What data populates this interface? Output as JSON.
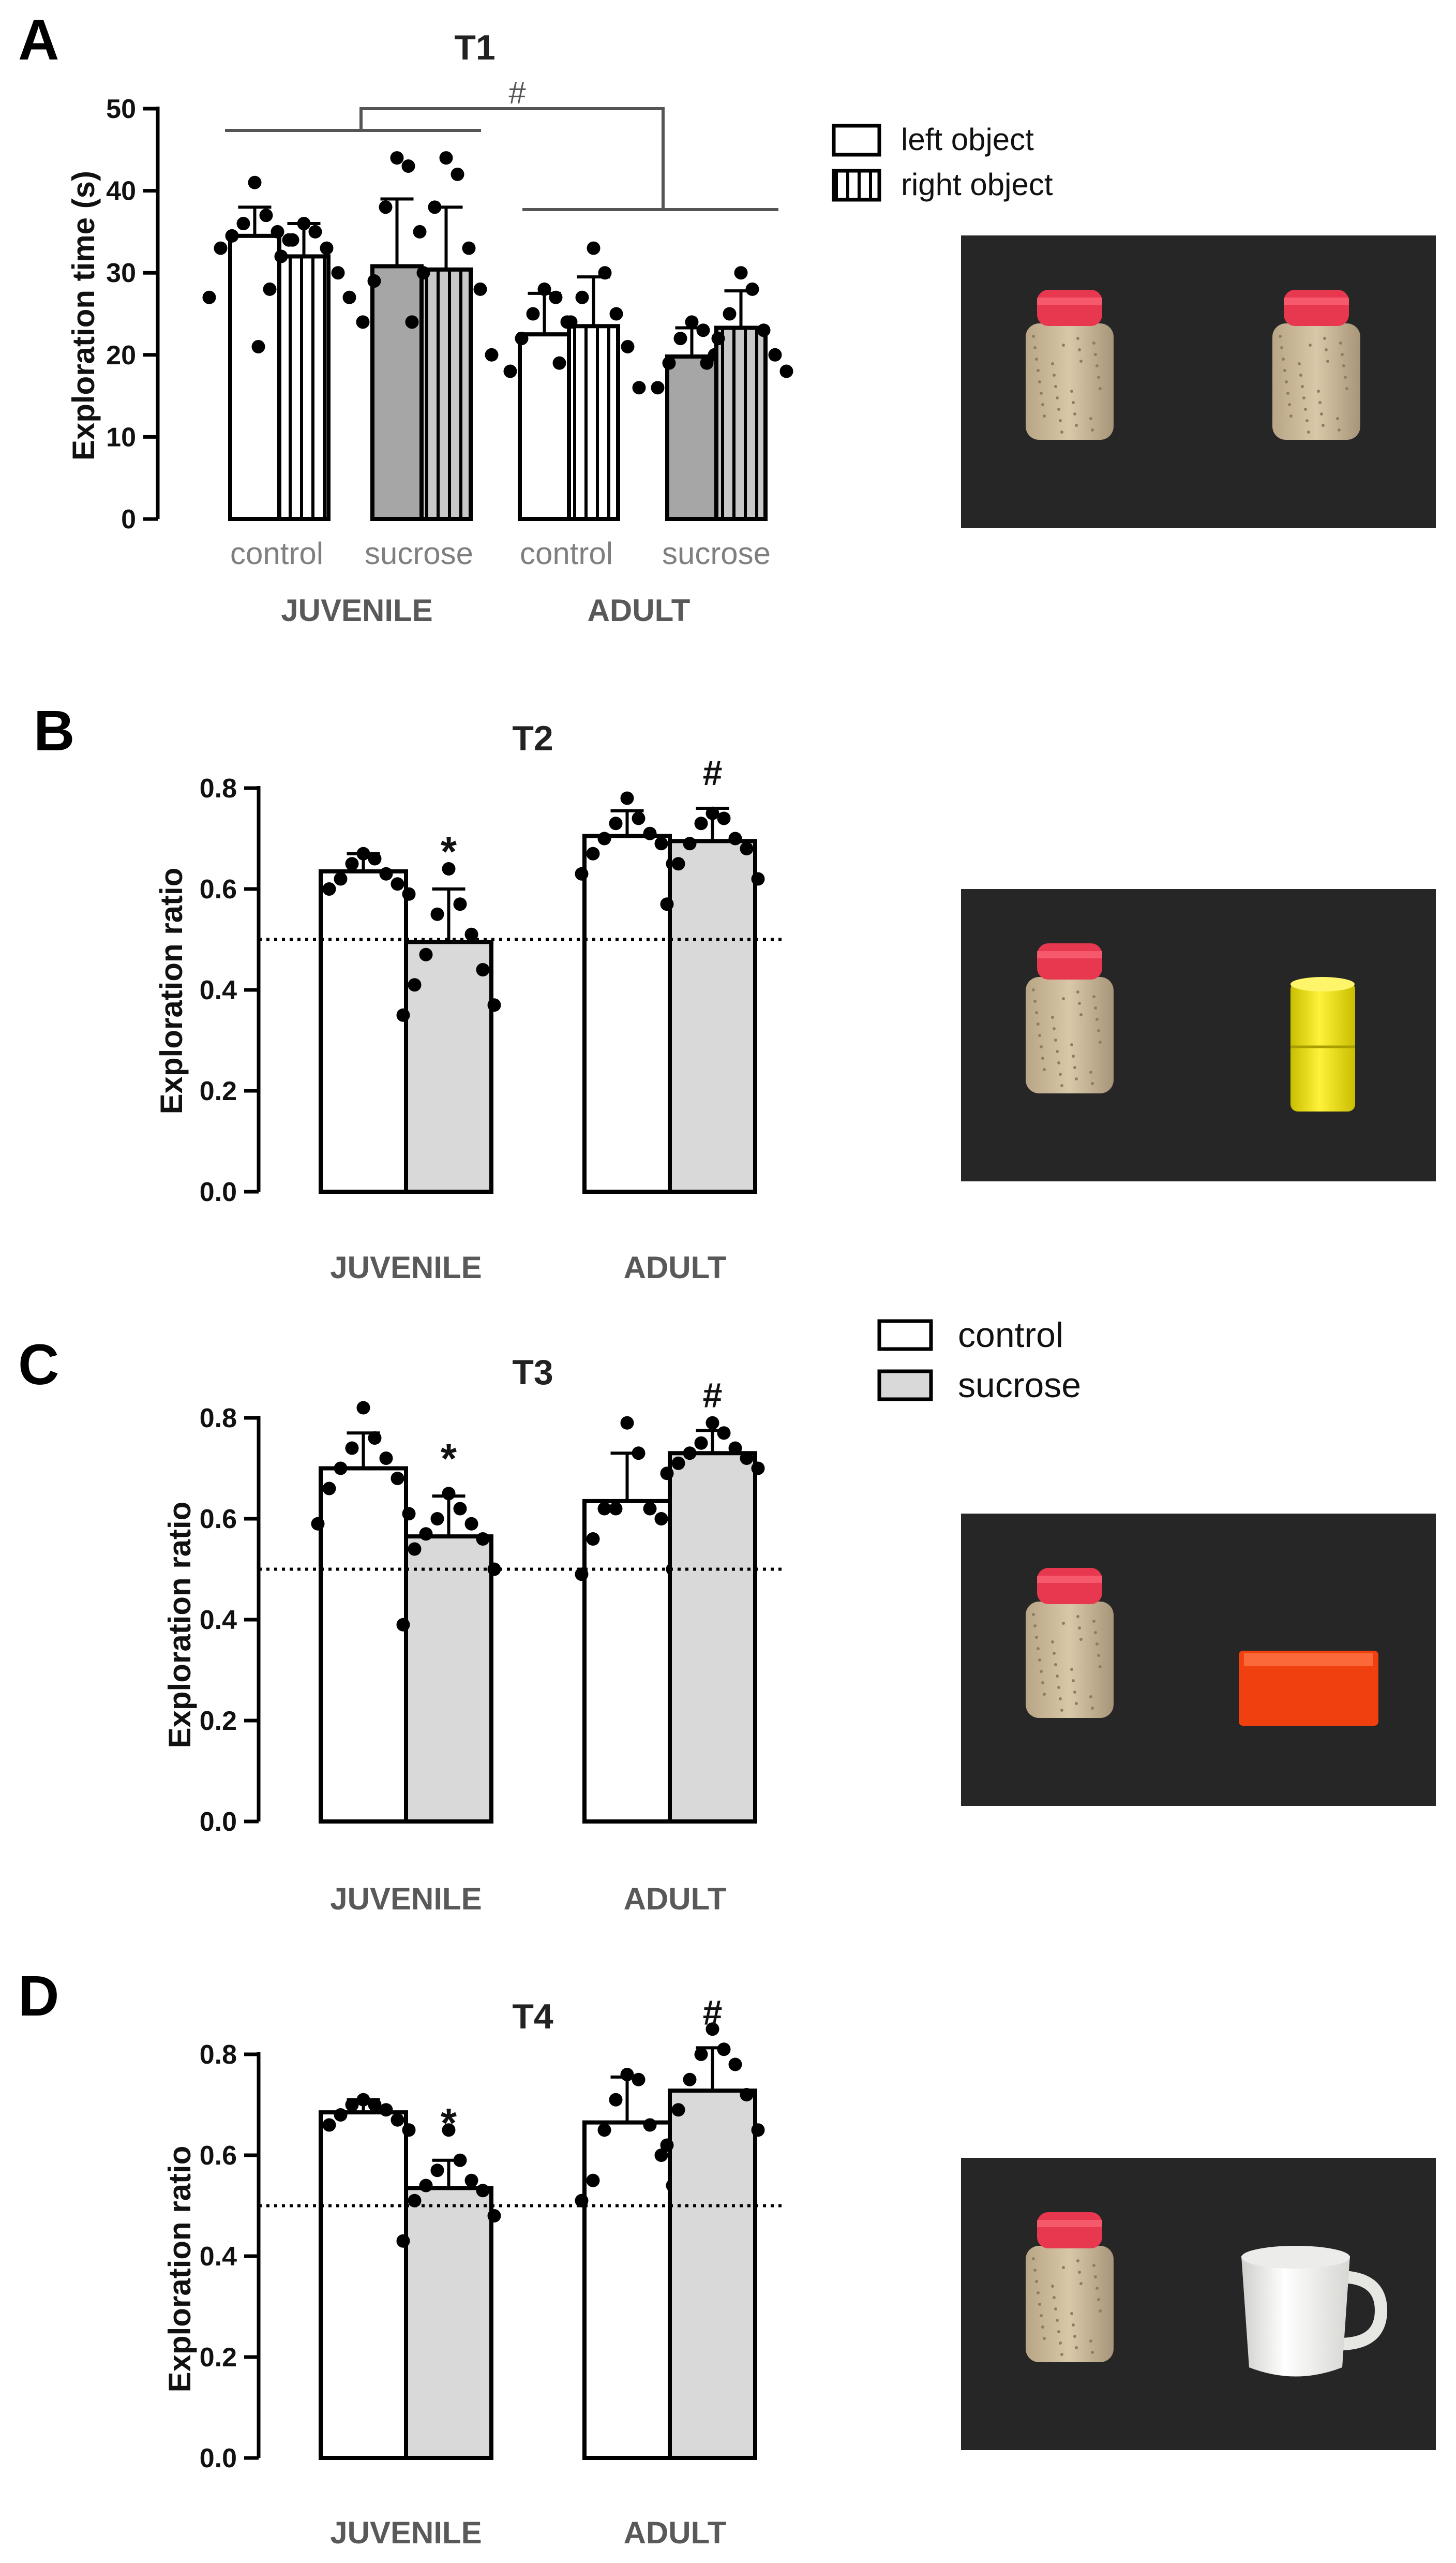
{
  "colors": {
    "control": "#ffffff",
    "sucrose_juvenile": "#a6a6a6",
    "sucrose_gray": "#d9d9d9",
    "photo_bg": "#262626",
    "jar_cap": "#e8384f",
    "jar_body": "#c8b697",
    "cylinder": "#f2e600",
    "brick": "#f0400f",
    "mug": "#f2f2f0"
  },
  "chart_data": [
    {
      "panel": "A",
      "type": "bar",
      "title": "T1",
      "ylabel": "Exploration time (s)",
      "ylim": [
        0,
        50
      ],
      "yticks": [
        "0",
        "10",
        "20",
        "30",
        "40",
        "50"
      ],
      "categories": [
        "control",
        "sucrose",
        "control",
        "sucrose"
      ],
      "group_labels": [
        "JUVENILE",
        "ADULT"
      ],
      "legend": [
        "left object",
        "right object"
      ],
      "series": [
        {
          "name": "left object",
          "values": [
            34.5,
            30.8,
            22.5,
            19.8
          ],
          "sd": [
            3.5,
            8.2,
            5.0,
            3.5
          ]
        },
        {
          "name": "right object",
          "values": [
            32.0,
            30.4,
            23.5,
            23.3
          ],
          "sd": [
            4.0,
            7.6,
            6.0,
            4.5
          ]
        }
      ],
      "points": [
        [
          [
            41,
            37,
            36,
            35,
            34.5,
            34,
            33,
            31,
            27
          ],
          [
            36,
            35,
            34,
            33,
            32,
            30,
            28,
            27,
            21
          ],
          [
            44,
            43,
            38,
            35,
            29,
            27,
            24,
            19
          ],
          [
            44,
            42,
            38,
            33,
            30,
            28,
            24,
            20
          ],
          [
            28,
            27,
            25,
            24,
            22,
            20,
            18,
            15
          ],
          [
            33,
            30,
            27,
            25,
            24,
            21,
            19,
            16
          ],
          [
            24,
            23,
            22,
            20,
            19,
            18,
            16,
            15
          ],
          [
            30,
            28,
            25,
            23,
            22,
            20,
            19,
            18
          ]
        ]
      ],
      "annotations": [
        "#"
      ]
    },
    {
      "panel": "B",
      "type": "bar",
      "title": "T2",
      "ylabel": "Exploration ratio",
      "ylim": [
        0,
        0.8
      ],
      "yticks": [
        "0.0",
        "0.2",
        "0.4",
        "0.6",
        "0.8"
      ],
      "categories": [
        "JUVENILE",
        "ADULT"
      ],
      "reference_line": 0.5,
      "series": [
        {
          "name": "control",
          "values": [
            0.635,
            0.705
          ],
          "sd": [
            0.035,
            0.05
          ]
        },
        {
          "name": "sucrose",
          "values": [
            0.495,
            0.695
          ],
          "sd": [
            0.105,
            0.065
          ]
        }
      ],
      "points": [
        [
          0.67,
          0.66,
          0.65,
          0.63,
          0.62,
          0.61,
          0.6,
          0.59
        ],
        [
          0.64,
          0.57,
          0.55,
          0.51,
          0.47,
          0.44,
          0.41,
          0.37,
          0.35
        ],
        [
          0.78,
          0.74,
          0.73,
          0.71,
          0.7,
          0.69,
          0.67,
          0.65,
          0.63
        ],
        [
          0.75,
          0.74,
          0.73,
          0.7,
          0.69,
          0.68,
          0.65,
          0.62,
          0.57
        ]
      ],
      "annotations": [
        "*",
        "#"
      ]
    },
    {
      "panel": "C",
      "type": "bar",
      "title": "T3",
      "ylabel": "Exploration ratio",
      "ylim": [
        0,
        0.8
      ],
      "yticks": [
        "0.0",
        "0.2",
        "0.4",
        "0.6",
        "0.8"
      ],
      "categories": [
        "JUVENILE",
        "ADULT"
      ],
      "reference_line": 0.5,
      "legend": [
        "control",
        "sucrose"
      ],
      "series": [
        {
          "name": "control",
          "values": [
            0.7,
            0.635
          ],
          "sd": [
            0.07,
            0.095
          ]
        },
        {
          "name": "sucrose",
          "values": [
            0.565,
            0.73
          ],
          "sd": [
            0.08,
            0.045
          ]
        }
      ],
      "points": [
        [
          0.82,
          0.76,
          0.74,
          0.72,
          0.7,
          0.68,
          0.66,
          0.61,
          0.59
        ],
        [
          0.65,
          0.62,
          0.6,
          0.59,
          0.57,
          0.56,
          0.54,
          0.5,
          0.39
        ],
        [
          0.79,
          0.73,
          0.62,
          0.62,
          0.62,
          0.6,
          0.56,
          0.5,
          0.49
        ],
        [
          0.79,
          0.77,
          0.75,
          0.74,
          0.73,
          0.72,
          0.71,
          0.7,
          0.69
        ]
      ],
      "annotations": [
        "*",
        "#"
      ]
    },
    {
      "panel": "D",
      "type": "bar",
      "title": "T4",
      "ylabel": "Exploration ratio",
      "ylim": [
        0,
        0.8
      ],
      "yticks": [
        "0.0",
        "0.2",
        "0.4",
        "0.6",
        "0.8"
      ],
      "categories": [
        "JUVENILE",
        "ADULT"
      ],
      "reference_line": 0.5,
      "series": [
        {
          "name": "control",
          "values": [
            0.685,
            0.665
          ],
          "sd": [
            0.025,
            0.09
          ]
        },
        {
          "name": "sucrose",
          "values": [
            0.535,
            0.728
          ],
          "sd": [
            0.055,
            0.085
          ]
        }
      ],
      "points": [
        [
          0.71,
          0.7,
          0.7,
          0.69,
          0.68,
          0.67,
          0.66,
          0.65
        ],
        [
          0.65,
          0.59,
          0.57,
          0.55,
          0.54,
          0.53,
          0.51,
          0.48,
          0.43
        ],
        [
          0.76,
          0.75,
          0.71,
          0.66,
          0.65,
          0.6,
          0.55,
          0.54,
          0.51
        ],
        [
          0.85,
          0.81,
          0.8,
          0.78,
          0.75,
          0.72,
          0.69,
          0.65,
          0.62
        ]
      ],
      "annotations": [
        "*",
        "#"
      ]
    }
  ],
  "panel_letters": [
    "A",
    "B",
    "C",
    "D"
  ],
  "photos": [
    {
      "name": "T1",
      "objects": [
        "jar",
        "jar"
      ]
    },
    {
      "name": "T2",
      "objects": [
        "jar",
        "cylinder"
      ]
    },
    {
      "name": "T3",
      "objects": [
        "jar",
        "brick"
      ]
    },
    {
      "name": "T4",
      "objects": [
        "jar",
        "mug"
      ]
    }
  ]
}
